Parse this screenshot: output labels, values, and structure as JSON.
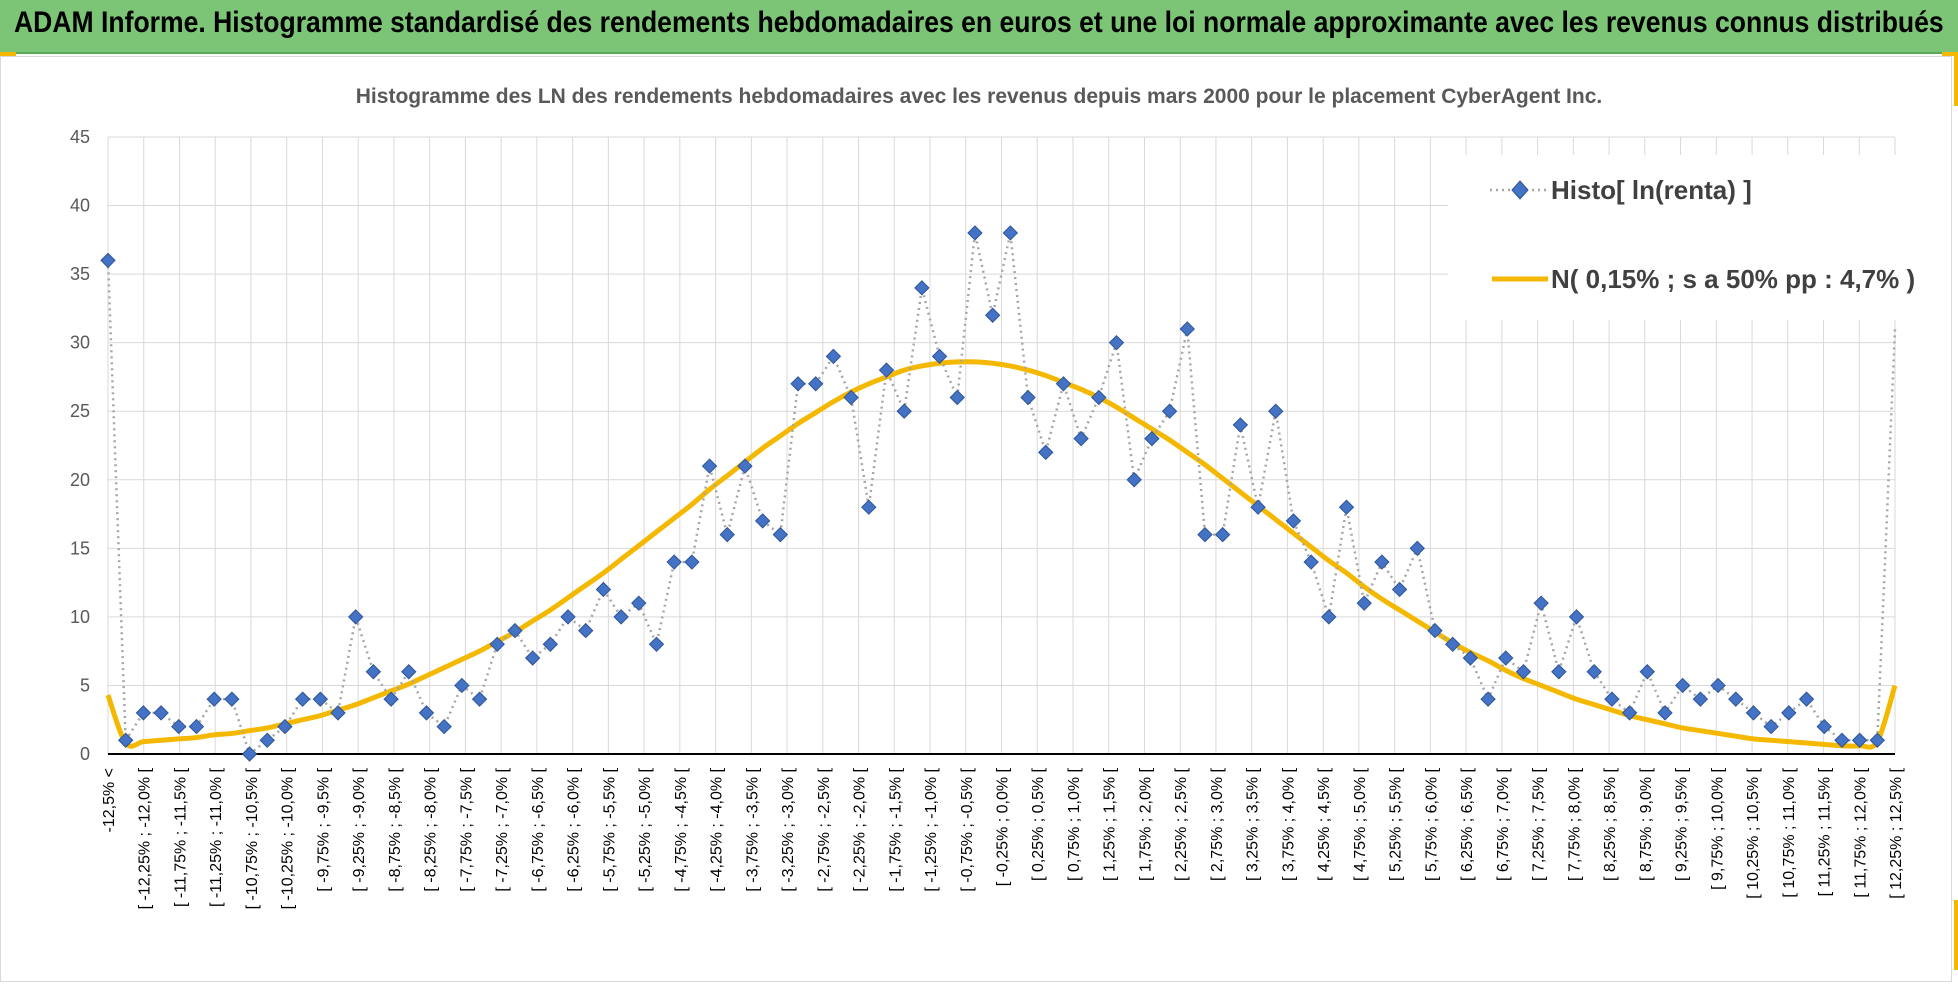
{
  "header": {
    "title": "ADAM Informe. Histogramme standardisé des rendements hebdomadaires en euros et une loi normale approximante avec les revenus connus distribués"
  },
  "colors": {
    "banner": "#7cc576",
    "accent": "#f5b800",
    "histo": "#4472c4",
    "histo_line": "#a6a6a6",
    "normal": "#f5b800"
  },
  "chart_data": {
    "type": "line",
    "title": "Histogramme des LN des rendements hebdomadaires avec les revenus depuis mars 2000 pour le placement CyberAgent Inc.",
    "xlabel": "",
    "ylabel": "",
    "ylim": [
      0,
      45
    ],
    "yticks": [
      0,
      5,
      10,
      15,
      20,
      25,
      30,
      35,
      40,
      45
    ],
    "grid": true,
    "legend_position": "top-right",
    "x_tick_labels": [
      "-12,5% <",
      "[ -12,25% ; -12,0% [",
      "[ -11,75% ; -11,5% [",
      "[ -11,25% ; -11,0% [",
      "[ -10,75% ; -10,5% [",
      "[ -10,25% ; -10,0% [",
      "[ -9,75% ; -9,5% [",
      "[ -9,25% ; -9,0% [",
      "[ -8,75% ; -8,5% [",
      "[ -8,25% ; -8,0% [",
      "[ -7,75% ; -7,5% [",
      "[ -7,25% ; -7,0% [",
      "[ -6,75% ; -6,5% [",
      "[ -6,25% ; -6,0% [",
      "[ -5,75% ; -5,5% [",
      "[ -5,25% ; -5,0% [",
      "[ -4,75% ; -4,5% [",
      "[ -4,25% ; -4,0% [",
      "[ -3,75% ; -3,5% [",
      "[ -3,25% ; -3,0% [",
      "[ -2,75% ; -2,5% [",
      "[ -2,25% ; -2,0% [",
      "[ -1,75% ; -1,5% [",
      "[ -1,25% ; -1,0% [",
      "[ -0,75% ; -0,5% [",
      "[ -0,25% ; 0,0% [",
      "[ 0,25% ; 0,5% [",
      "[ 0,75% ; 1,0% [",
      "[ 1,25% ; 1,5% [",
      "[ 1,75% ; 2,0% [",
      "[ 2,25% ; 2,5% [",
      "[ 2,75% ; 3,0% [",
      "[ 3,25% ; 3,5% [",
      "[ 3,75% ; 4,0% [",
      "[ 4,25% ; 4,5% [",
      "[ 4,75% ; 5,0% [",
      "[ 5,25% ; 5,5% [",
      "[ 5,75% ; 6,0% [",
      "[ 6,25% ; 6,5% [",
      "[ 6,75% ; 7,0% [",
      "[ 7,25% ; 7,5% [",
      "[ 7,75% ; 8,0% [",
      "[ 8,25% ; 8,5% [",
      "[ 8,75% ; 9,0% [",
      "[ 9,25% ; 9,5% [",
      "[ 9,75% ; 10,0% [",
      "[ 10,25% ; 10,5% [",
      "[ 10,75% ; 11,0% [",
      "[ 11,25% ; 11,5% [",
      "[ 11,75% ; 12,0% [",
      "[ 12,25% ; 12,5% ["
    ],
    "series": [
      {
        "name": "Histo[ ln(renta) ]",
        "style": "dotted line with diamond markers",
        "values": [
          36,
          1,
          3,
          3,
          2,
          2,
          4,
          4,
          0,
          1,
          2,
          4,
          4,
          3,
          10,
          6,
          4,
          6,
          3,
          2,
          5,
          4,
          8,
          9,
          7,
          8,
          10,
          9,
          12,
          10,
          11,
          8,
          14,
          14,
          21,
          16,
          21,
          17,
          16,
          27,
          27,
          29,
          26,
          18,
          28,
          25,
          34,
          29,
          26,
          38,
          32,
          38,
          26,
          22,
          27,
          23,
          26,
          30,
          20,
          23,
          25,
          31,
          16,
          16,
          24,
          18,
          25,
          17,
          14,
          10,
          18,
          11,
          14,
          12,
          15,
          9,
          8,
          7,
          4,
          7,
          6,
          11,
          6,
          10,
          6,
          4,
          3,
          6,
          3,
          5,
          4,
          5,
          4,
          3,
          2,
          3,
          4,
          2,
          1,
          1,
          1,
          31
        ]
      },
      {
        "name": "N( 0,15% ; s a 50% pp : 4,7% )",
        "style": "smooth solid line",
        "values": [
          4.3,
          0.8,
          0.9,
          1.0,
          1.1,
          1.2,
          1.4,
          1.5,
          1.7,
          1.9,
          2.2,
          2.5,
          2.8,
          3.2,
          3.6,
          4.1,
          4.6,
          5.1,
          5.7,
          6.3,
          6.9,
          7.5,
          8.2,
          8.9,
          9.7,
          10.5,
          11.4,
          12.3,
          13.2,
          14.2,
          15.2,
          16.2,
          17.2,
          18.2,
          19.3,
          20.3,
          21.3,
          22.3,
          23.2,
          24.1,
          24.9,
          25.7,
          26.4,
          27.0,
          27.5,
          28.0,
          28.3,
          28.5,
          28.6,
          28.6,
          28.5,
          28.3,
          28.0,
          27.6,
          27.1,
          26.6,
          26.0,
          25.3,
          24.5,
          23.7,
          22.9,
          22.0,
          21.1,
          20.1,
          19.1,
          18.1,
          17.1,
          16.1,
          15.1,
          14.1,
          13.2,
          12.2,
          11.3,
          10.5,
          9.7,
          8.9,
          8.1,
          7.4,
          6.8,
          6.1,
          5.5,
          5.0,
          4.5,
          4.0,
          3.6,
          3.2,
          2.8,
          2.5,
          2.2,
          1.9,
          1.7,
          1.5,
          1.3,
          1.1,
          1.0,
          0.9,
          0.8,
          0.7,
          0.6,
          0.6,
          0.9,
          5.0
        ]
      }
    ]
  }
}
